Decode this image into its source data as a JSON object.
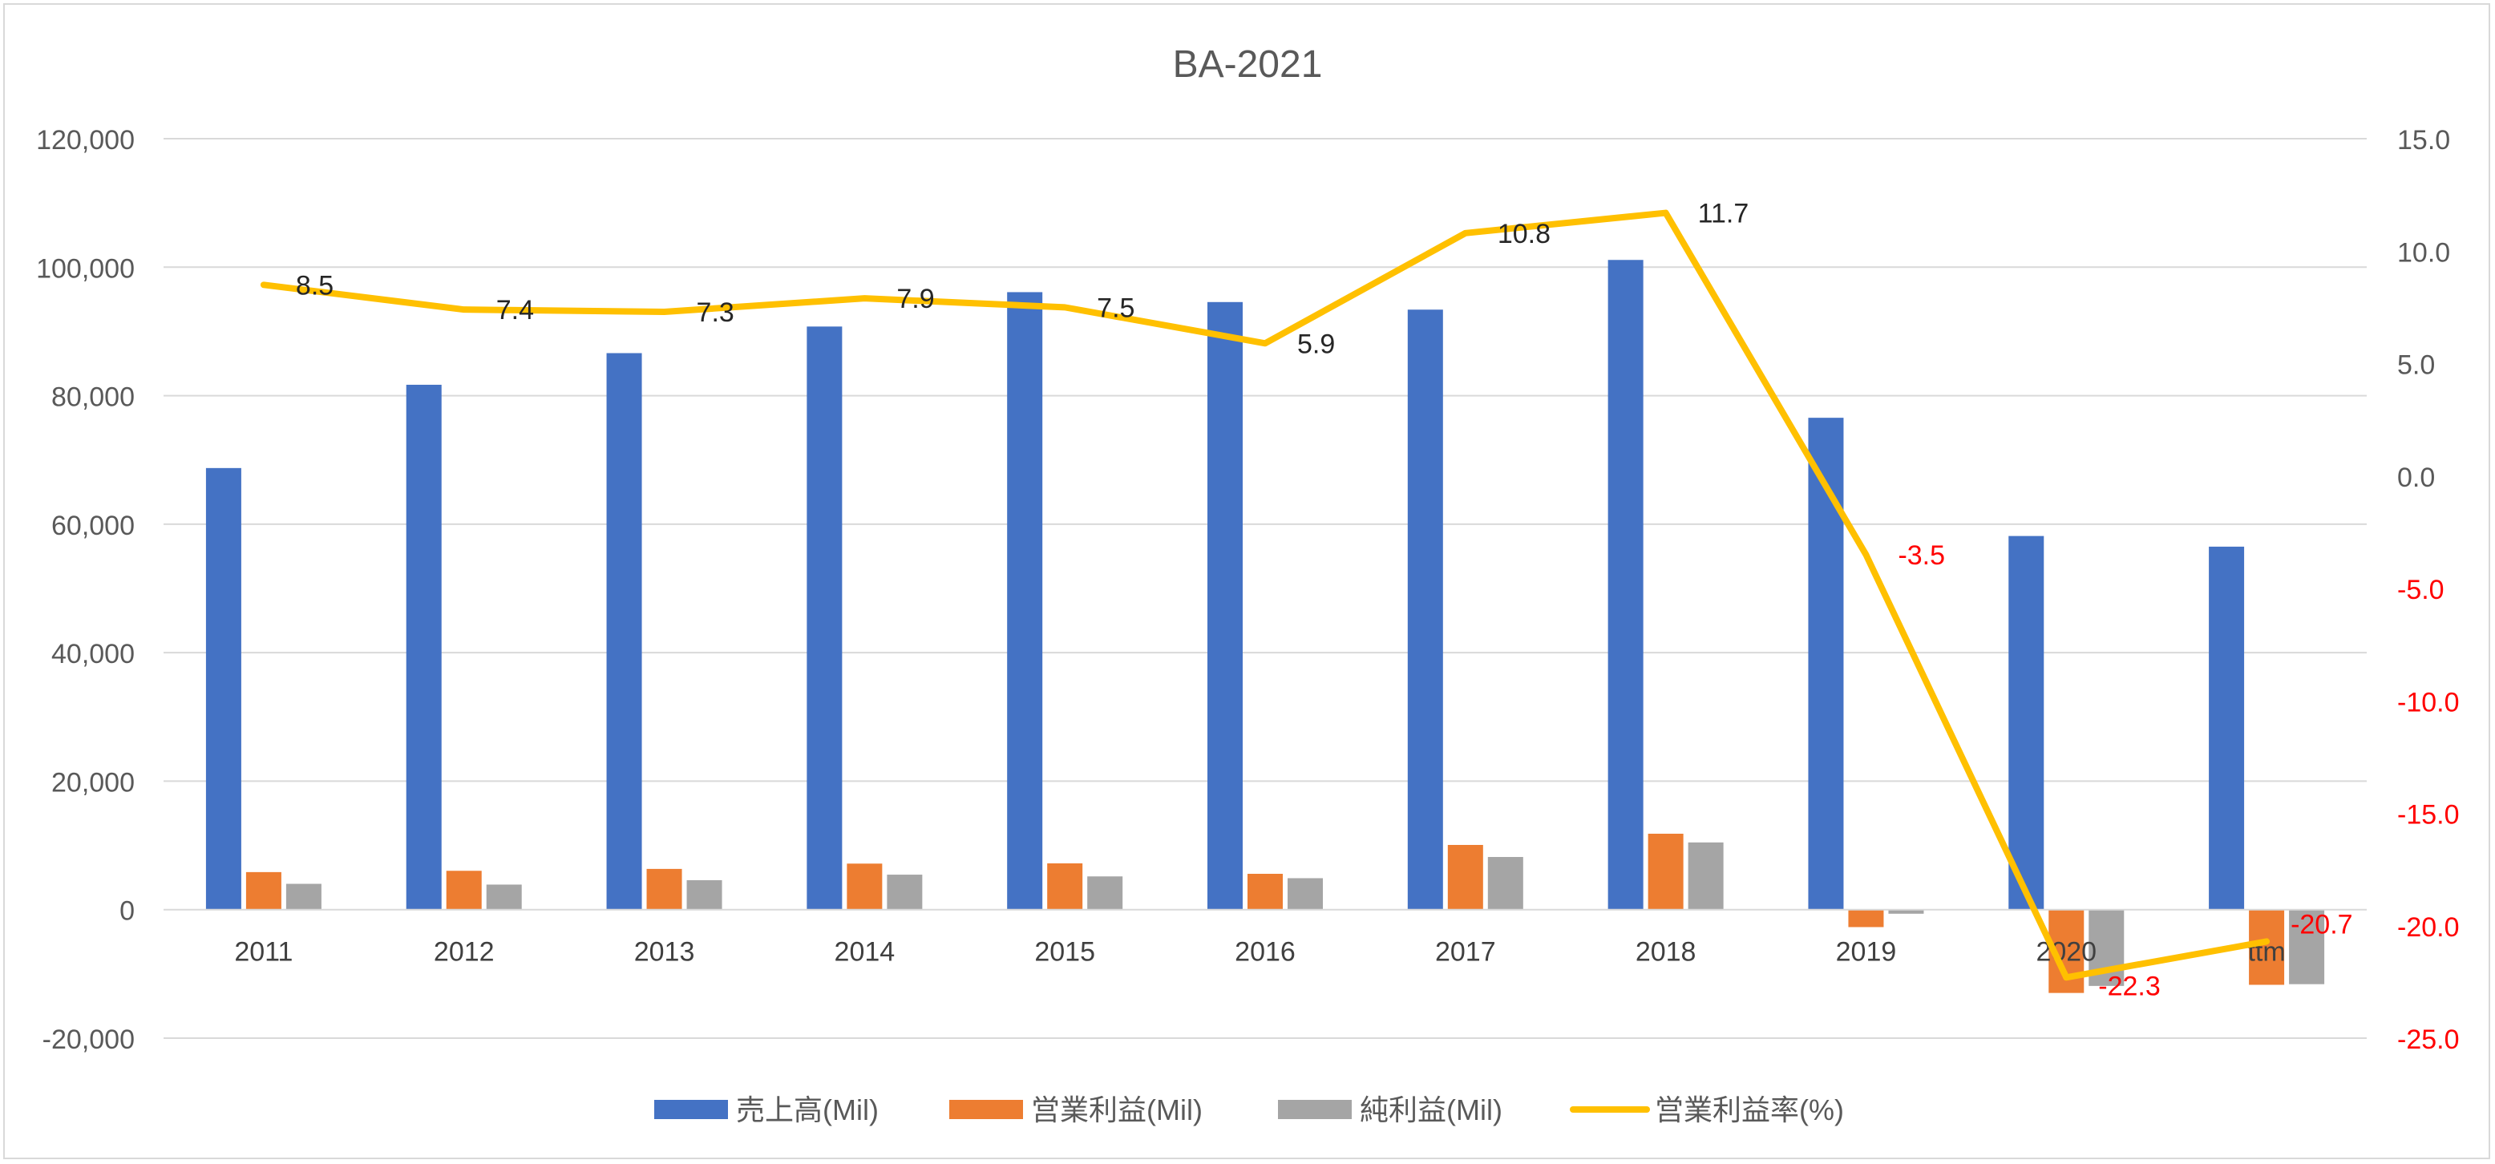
{
  "chart_data": {
    "type": "bar",
    "title": "BA-2021",
    "categories": [
      "2011",
      "2012",
      "2013",
      "2014",
      "2015",
      "2016",
      "2017",
      "2018",
      "2019",
      "2020",
      "ttm"
    ],
    "series": [
      {
        "name": "売上高(Mil)",
        "type": "bar",
        "axis": "left",
        "color": "#4472C4",
        "values": [
          68735,
          81698,
          86623,
          90762,
          96114,
          94571,
          93392,
          101127,
          76559,
          58158,
          56500
        ]
      },
      {
        "name": "営業利益(Mil)",
        "type": "bar",
        "axis": "left",
        "color": "#ED7D31",
        "values": [
          5844,
          6046,
          6342,
          7166,
          7204,
          5578,
          10073,
          11817,
          -2715,
          -12967,
          -11700
        ]
      },
      {
        "name": "純利益(Mil)",
        "type": "bar",
        "axis": "left",
        "color": "#A5A5A5",
        "values": [
          4018,
          3900,
          4585,
          5446,
          5176,
          4895,
          8197,
          10460,
          -636,
          -11873,
          -11600
        ]
      },
      {
        "name": "営業利益率(%)",
        "type": "line",
        "axis": "right",
        "color": "#FFC000",
        "values": [
          8.5,
          7.4,
          7.3,
          7.9,
          7.5,
          5.9,
          10.8,
          11.7,
          -3.5,
          -22.3,
          -20.7
        ],
        "labels": [
          "8.5",
          "7.4",
          "7.3",
          "7.9",
          "7.5",
          "5.9",
          "10.8",
          "11.7",
          "-3.5",
          "-22.3",
          "-20.7"
        ]
      }
    ],
    "left_axis": {
      "ylim": [
        -20000,
        120000
      ],
      "ticks": [
        "-20,000",
        "0",
        "20,000",
        "40,000",
        "60,000",
        "80,000",
        "100,000",
        "120,000"
      ],
      "tick_values": [
        -20000,
        0,
        20000,
        40000,
        60000,
        80000,
        100000,
        120000
      ]
    },
    "right_axis": {
      "ylim": [
        -25,
        15
      ],
      "ticks": [
        "-25.0",
        "-20.0",
        "-15.0",
        "-10.0",
        "-5.0",
        "0.0",
        "5.0",
        "10.0",
        "15.0"
      ],
      "tick_values": [
        -25,
        -20,
        -15,
        -10,
        -5,
        0,
        5,
        10,
        15
      ]
    },
    "negative_color": "#FF0000",
    "text_color": "#595959",
    "grid": true,
    "legend_position": "bottom"
  }
}
